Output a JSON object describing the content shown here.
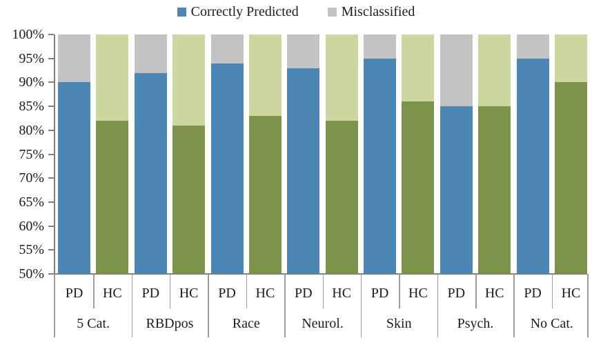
{
  "colors": {
    "pd_correct": "#4c86b4",
    "pd_misclassified": "#c3c3c3",
    "hc_correct": "#7c9349",
    "hc_misclassified": "#ccd7a0",
    "axis_line": "#808080",
    "separator_line": "#9b9b9b",
    "text": "#1c1c1c"
  },
  "chart_data": {
    "type": "bar",
    "subtype": "stacked-100-percent",
    "title": "",
    "legend": [
      {
        "label": "Correctly Predicted",
        "color": "#4c86b4"
      },
      {
        "label": "Misclassified",
        "color": "#c3c3c3"
      }
    ],
    "legend_position": "top-center",
    "grid": false,
    "y_axis": {
      "min": 50,
      "max": 100,
      "ticks": [
        {
          "v": 100,
          "label": "100%"
        },
        {
          "v": 95,
          "label": "95%"
        },
        {
          "v": 90,
          "label": "90%"
        },
        {
          "v": 85,
          "label": "85%"
        },
        {
          "v": 80,
          "label": "80%"
        },
        {
          "v": 75,
          "label": "75%"
        },
        {
          "v": 70,
          "label": "70%"
        },
        {
          "v": 65,
          "label": "65%"
        },
        {
          "v": 60,
          "label": "60%"
        },
        {
          "v": 55,
          "label": "55%"
        },
        {
          "v": 50,
          "label": "50%"
        }
      ]
    },
    "groups": [
      "5 Cat.",
      "RBDpos",
      "Race",
      "Neurol.",
      "Skin",
      "Psych.",
      "No Cat."
    ],
    "sub_categories": [
      "PD",
      "HC"
    ],
    "bars": [
      {
        "group": "5 Cat.",
        "sub": "PD",
        "correctly_predicted": 90,
        "misclassified": 10
      },
      {
        "group": "5 Cat.",
        "sub": "HC",
        "correctly_predicted": 82,
        "misclassified": 18
      },
      {
        "group": "RBDpos",
        "sub": "PD",
        "correctly_predicted": 92,
        "misclassified": 8
      },
      {
        "group": "RBDpos",
        "sub": "HC",
        "correctly_predicted": 81,
        "misclassified": 19
      },
      {
        "group": "Race",
        "sub": "PD",
        "correctly_predicted": 94,
        "misclassified": 6
      },
      {
        "group": "Race",
        "sub": "HC",
        "correctly_predicted": 83,
        "misclassified": 17
      },
      {
        "group": "Neurol.",
        "sub": "PD",
        "correctly_predicted": 93,
        "misclassified": 7
      },
      {
        "group": "Neurol.",
        "sub": "HC",
        "correctly_predicted": 82,
        "misclassified": 18
      },
      {
        "group": "Skin",
        "sub": "PD",
        "correctly_predicted": 95,
        "misclassified": 5
      },
      {
        "group": "Skin",
        "sub": "HC",
        "correctly_predicted": 86,
        "misclassified": 14
      },
      {
        "group": "Psych.",
        "sub": "PD",
        "correctly_predicted": 85,
        "misclassified": 15
      },
      {
        "group": "Psych.",
        "sub": "HC",
        "correctly_predicted": 85,
        "misclassified": 15
      },
      {
        "group": "No Cat.",
        "sub": "PD",
        "correctly_predicted": 95,
        "misclassified": 5
      },
      {
        "group": "No Cat.",
        "sub": "HC",
        "correctly_predicted": 90,
        "misclassified": 10
      }
    ]
  }
}
